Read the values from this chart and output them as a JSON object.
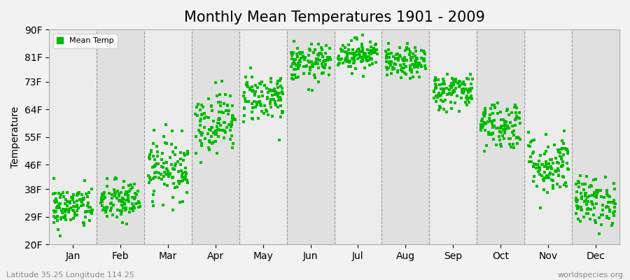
{
  "title": "Monthly Mean Temperatures 1901 - 2009",
  "ylabel": "Temperature",
  "xlabel_bottom_left": "Latitude 35.25 Longitude 114.25",
  "xlabel_bottom_right": "worldspecies.org",
  "ytick_labels": [
    "20F",
    "29F",
    "38F",
    "46F",
    "55F",
    "64F",
    "73F",
    "81F",
    "90F"
  ],
  "ytick_values": [
    20,
    29,
    38,
    46,
    55,
    64,
    73,
    81,
    90
  ],
  "ylim": [
    20,
    90
  ],
  "months": [
    "Jan",
    "Feb",
    "Mar",
    "Apr",
    "May",
    "Jun",
    "Jul",
    "Aug",
    "Sep",
    "Oct",
    "Nov",
    "Dec"
  ],
  "dot_color": "#00bb00",
  "bg_color": "#f2f2f2",
  "plot_bg_color_light": "#ebebeb",
  "plot_bg_color_dark": "#e0e0e0",
  "legend_label": "Mean Temp",
  "title_fontsize": 15,
  "axis_fontsize": 10,
  "month_mean_temps": [
    32,
    34,
    45,
    60,
    68,
    79,
    82,
    79,
    70,
    59,
    46,
    34
  ],
  "month_std_temps": [
    3.5,
    3.5,
    5,
    5,
    4,
    3,
    2.5,
    2.5,
    3,
    4,
    5,
    4
  ],
  "n_years": 109
}
